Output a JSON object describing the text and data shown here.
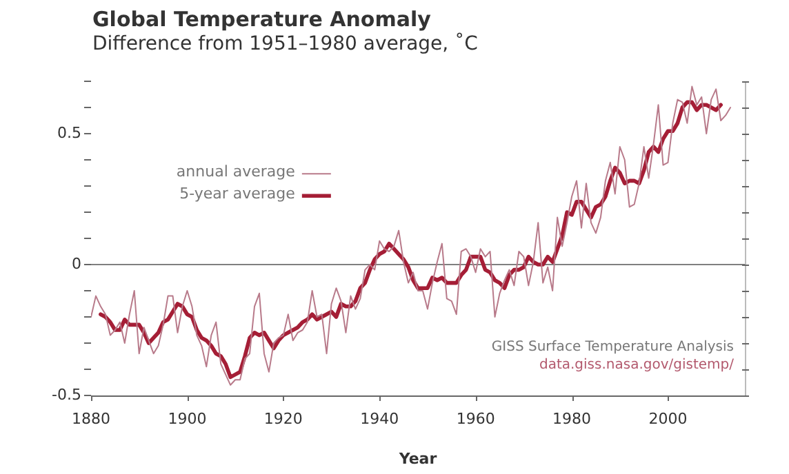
{
  "chart_data": {
    "type": "line",
    "title": "Global Temperature Anomaly",
    "subtitle": "Difference from 1951–1980 average, ˚C",
    "xlabel": "Year",
    "xlim": [
      1880,
      2016
    ],
    "xticks": [
      1880,
      1900,
      1920,
      1940,
      1960,
      1980,
      2000
    ],
    "ylim": [
      -0.5,
      0.7
    ],
    "yticks": [
      -0.5,
      {
        "value": -0.4,
        "label": null
      },
      {
        "value": -0.3,
        "label": null
      },
      {
        "value": -0.2,
        "label": null
      },
      {
        "value": -0.1,
        "label": null
      },
      0,
      {
        "value": 0.1,
        "label": null
      },
      {
        "value": 0.2,
        "label": null
      },
      {
        "value": 0.3,
        "label": null
      },
      {
        "value": 0.4,
        "label": null
      },
      0.5,
      {
        "value": 0.6,
        "label": null
      },
      {
        "value": 0.7,
        "label": null
      }
    ],
    "grid": false,
    "legend": "top left",
    "marker": "none",
    "line_style": "solid",
    "ref_lines": [
      {
        "axis": "y",
        "value": 0,
        "color": "#7f7f7f"
      }
    ],
    "annotations": [
      "GISS Surface Temperature Analysis",
      "data.giss.nasa.gov/gistemp/"
    ],
    "series": [
      {
        "name": "annual average",
        "color": "#b87a8a",
        "x": [
          1880,
          1881,
          1882,
          1883,
          1884,
          1885,
          1886,
          1887,
          1888,
          1889,
          1890,
          1891,
          1892,
          1893,
          1894,
          1895,
          1896,
          1897,
          1898,
          1899,
          1900,
          1901,
          1902,
          1903,
          1904,
          1905,
          1906,
          1907,
          1908,
          1909,
          1910,
          1911,
          1912,
          1913,
          1914,
          1915,
          1916,
          1917,
          1918,
          1919,
          1920,
          1921,
          1922,
          1923,
          1924,
          1925,
          1926,
          1927,
          1928,
          1929,
          1930,
          1931,
          1932,
          1933,
          1934,
          1935,
          1936,
          1937,
          1938,
          1939,
          1940,
          1941,
          1942,
          1943,
          1944,
          1945,
          1946,
          1947,
          1948,
          1949,
          1950,
          1951,
          1952,
          1953,
          1954,
          1955,
          1956,
          1957,
          1958,
          1959,
          1960,
          1961,
          1962,
          1963,
          1964,
          1965,
          1966,
          1967,
          1968,
          1969,
          1970,
          1971,
          1972,
          1973,
          1974,
          1975,
          1976,
          1977,
          1978,
          1979,
          1980,
          1981,
          1982,
          1983,
          1984,
          1985,
          1986,
          1987,
          1988,
          1989,
          1990,
          1991,
          1992,
          1993,
          1994,
          1995,
          1996,
          1997,
          1998,
          1999,
          2000,
          2001,
          2002,
          2003,
          2004,
          2005,
          2006,
          2007,
          2008,
          2009,
          2010,
          2011,
          2012,
          2013
        ],
        "values": [
          -0.2,
          -0.12,
          -0.16,
          -0.19,
          -0.27,
          -0.25,
          -0.22,
          -0.3,
          -0.19,
          -0.1,
          -0.34,
          -0.24,
          -0.29,
          -0.34,
          -0.31,
          -0.23,
          -0.12,
          -0.12,
          -0.26,
          -0.16,
          -0.1,
          -0.16,
          -0.27,
          -0.31,
          -0.39,
          -0.27,
          -0.22,
          -0.38,
          -0.42,
          -0.46,
          -0.44,
          -0.44,
          -0.36,
          -0.34,
          -0.16,
          -0.11,
          -0.34,
          -0.41,
          -0.3,
          -0.28,
          -0.27,
          -0.19,
          -0.29,
          -0.26,
          -0.25,
          -0.22,
          -0.1,
          -0.2,
          -0.19,
          -0.34,
          -0.15,
          -0.09,
          -0.14,
          -0.26,
          -0.12,
          -0.17,
          -0.13,
          -0.02,
          0.0,
          -0.02,
          0.09,
          0.06,
          0.05,
          0.07,
          0.13,
          0.01,
          -0.07,
          -0.03,
          -0.1,
          -0.1,
          -0.17,
          -0.07,
          0.01,
          0.08,
          -0.13,
          -0.14,
          -0.19,
          0.05,
          0.06,
          0.03,
          -0.03,
          0.06,
          0.03,
          0.05,
          -0.2,
          -0.11,
          -0.06,
          -0.02,
          -0.08,
          0.05,
          0.03,
          -0.08,
          0.01,
          0.16,
          -0.07,
          -0.01,
          -0.1,
          0.18,
          0.07,
          0.16,
          0.26,
          0.32,
          0.14,
          0.31,
          0.16,
          0.12,
          0.18,
          0.32,
          0.39,
          0.27,
          0.45,
          0.4,
          0.22,
          0.23,
          0.31,
          0.45,
          0.33,
          0.46,
          0.61,
          0.38,
          0.39,
          0.54,
          0.63,
          0.62,
          0.54,
          0.68,
          0.61,
          0.64,
          0.5,
          0.63,
          0.67,
          0.55,
          0.57,
          0.6
        ]
      },
      {
        "name": "5-year average",
        "color": "#a51e36",
        "x": [
          1882,
          1883,
          1884,
          1885,
          1886,
          1887,
          1888,
          1889,
          1890,
          1891,
          1892,
          1893,
          1894,
          1895,
          1896,
          1897,
          1898,
          1899,
          1900,
          1901,
          1902,
          1903,
          1904,
          1905,
          1906,
          1907,
          1908,
          1909,
          1910,
          1911,
          1912,
          1913,
          1914,
          1915,
          1916,
          1917,
          1918,
          1919,
          1920,
          1921,
          1922,
          1923,
          1924,
          1925,
          1926,
          1927,
          1928,
          1929,
          1930,
          1931,
          1932,
          1933,
          1934,
          1935,
          1936,
          1937,
          1938,
          1939,
          1940,
          1941,
          1942,
          1943,
          1944,
          1945,
          1946,
          1947,
          1948,
          1949,
          1950,
          1951,
          1952,
          1953,
          1954,
          1955,
          1956,
          1957,
          1958,
          1959,
          1960,
          1961,
          1962,
          1963,
          1964,
          1965,
          1966,
          1967,
          1968,
          1969,
          1970,
          1971,
          1972,
          1973,
          1974,
          1975,
          1976,
          1977,
          1978,
          1979,
          1980,
          1981,
          1982,
          1983,
          1984,
          1985,
          1986,
          1987,
          1988,
          1989,
          1990,
          1991,
          1992,
          1993,
          1994,
          1995,
          1996,
          1997,
          1998,
          1999,
          2000,
          2001,
          2002,
          2003,
          2004,
          2005,
          2006,
          2007,
          2008,
          2009,
          2010,
          2011
        ],
        "values": [
          -0.19,
          -0.2,
          -0.22,
          -0.25,
          -0.25,
          -0.21,
          -0.23,
          -0.23,
          -0.23,
          -0.26,
          -0.3,
          -0.28,
          -0.26,
          -0.22,
          -0.21,
          -0.18,
          -0.15,
          -0.16,
          -0.19,
          -0.2,
          -0.25,
          -0.28,
          -0.29,
          -0.31,
          -0.34,
          -0.35,
          -0.38,
          -0.43,
          -0.42,
          -0.41,
          -0.35,
          -0.28,
          -0.26,
          -0.27,
          -0.26,
          -0.29,
          -0.32,
          -0.29,
          -0.27,
          -0.26,
          -0.25,
          -0.24,
          -0.22,
          -0.21,
          -0.19,
          -0.21,
          -0.2,
          -0.19,
          -0.18,
          -0.2,
          -0.15,
          -0.16,
          -0.16,
          -0.14,
          -0.09,
          -0.07,
          -0.02,
          0.02,
          0.04,
          0.05,
          0.08,
          0.06,
          0.04,
          0.02,
          -0.01,
          -0.06,
          -0.09,
          -0.09,
          -0.09,
          -0.05,
          -0.06,
          -0.05,
          -0.07,
          -0.07,
          -0.07,
          -0.04,
          -0.02,
          0.03,
          0.03,
          0.03,
          -0.02,
          -0.03,
          -0.06,
          -0.07,
          -0.09,
          -0.04,
          -0.02,
          -0.02,
          -0.01,
          0.03,
          0.01,
          0.0,
          0.0,
          0.03,
          0.01,
          0.06,
          0.11,
          0.2,
          0.19,
          0.24,
          0.24,
          0.21,
          0.18,
          0.22,
          0.23,
          0.26,
          0.32,
          0.37,
          0.35,
          0.31,
          0.32,
          0.32,
          0.31,
          0.36,
          0.43,
          0.45,
          0.43,
          0.48,
          0.51,
          0.51,
          0.54,
          0.6,
          0.62,
          0.62,
          0.59,
          0.61,
          0.61,
          0.6,
          0.59,
          0.61
        ]
      }
    ]
  }
}
